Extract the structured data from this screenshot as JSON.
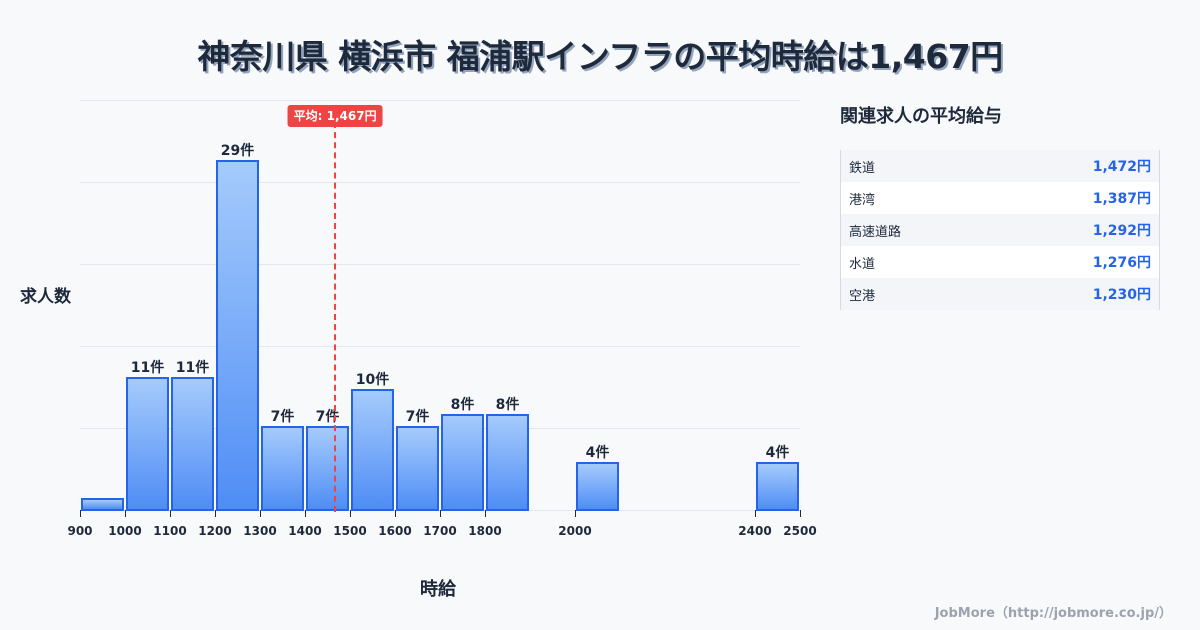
{
  "header": {
    "title": "神奈川県 横浜市 福浦駅インフラの平均時給は1,467円"
  },
  "chart_data": {
    "type": "bar",
    "title": "神奈川県 横浜市 福浦駅インフラの平均時給は1,467円",
    "xlabel": "時給",
    "ylabel": "求人数",
    "bins": [
      {
        "from": 900,
        "to": 1000,
        "count": 1,
        "label": ""
      },
      {
        "from": 1000,
        "to": 1100,
        "count": 11,
        "label": "11件"
      },
      {
        "from": 1100,
        "to": 1200,
        "count": 11,
        "label": "11件"
      },
      {
        "from": 1200,
        "to": 1300,
        "count": 29,
        "label": "29件"
      },
      {
        "from": 1300,
        "to": 1400,
        "count": 7,
        "label": "7件"
      },
      {
        "from": 1400,
        "to": 1500,
        "count": 7,
        "label": "7件"
      },
      {
        "from": 1500,
        "to": 1600,
        "count": 10,
        "label": "10件"
      },
      {
        "from": 1600,
        "to": 1700,
        "count": 7,
        "label": "7件"
      },
      {
        "from": 1700,
        "to": 1800,
        "count": 8,
        "label": "8件"
      },
      {
        "from": 1800,
        "to": 1900,
        "count": 8,
        "label": "8件"
      },
      {
        "from": 2000,
        "to": 2100,
        "count": 4,
        "label": "4件"
      },
      {
        "from": 2400,
        "to": 2500,
        "count": 4,
        "label": "4件"
      }
    ],
    "x_ticks": [
      "900",
      "1000",
      "1100",
      "1200",
      "1300",
      "1400",
      "1500",
      "1600",
      "1700",
      "1800",
      "2000",
      "2400",
      "2500"
    ],
    "xlim": [
      900,
      2500
    ],
    "ylim": [
      0,
      34
    ],
    "grid": true,
    "average": {
      "value": 1467,
      "label": "平均: 1,467円",
      "color": "#ef4444"
    },
    "bar_color": "#2563eb"
  },
  "sidebar": {
    "title": "関連求人の平均給与",
    "rows": [
      {
        "name": "鉄道",
        "value": "1,472円"
      },
      {
        "name": "港湾",
        "value": "1,387円"
      },
      {
        "name": "高速道路",
        "value": "1,292円"
      },
      {
        "name": "水道",
        "value": "1,276円"
      },
      {
        "name": "空港",
        "value": "1,230円"
      }
    ]
  },
  "footer": {
    "credit": "JobMore（http://jobmore.co.jp/）"
  }
}
